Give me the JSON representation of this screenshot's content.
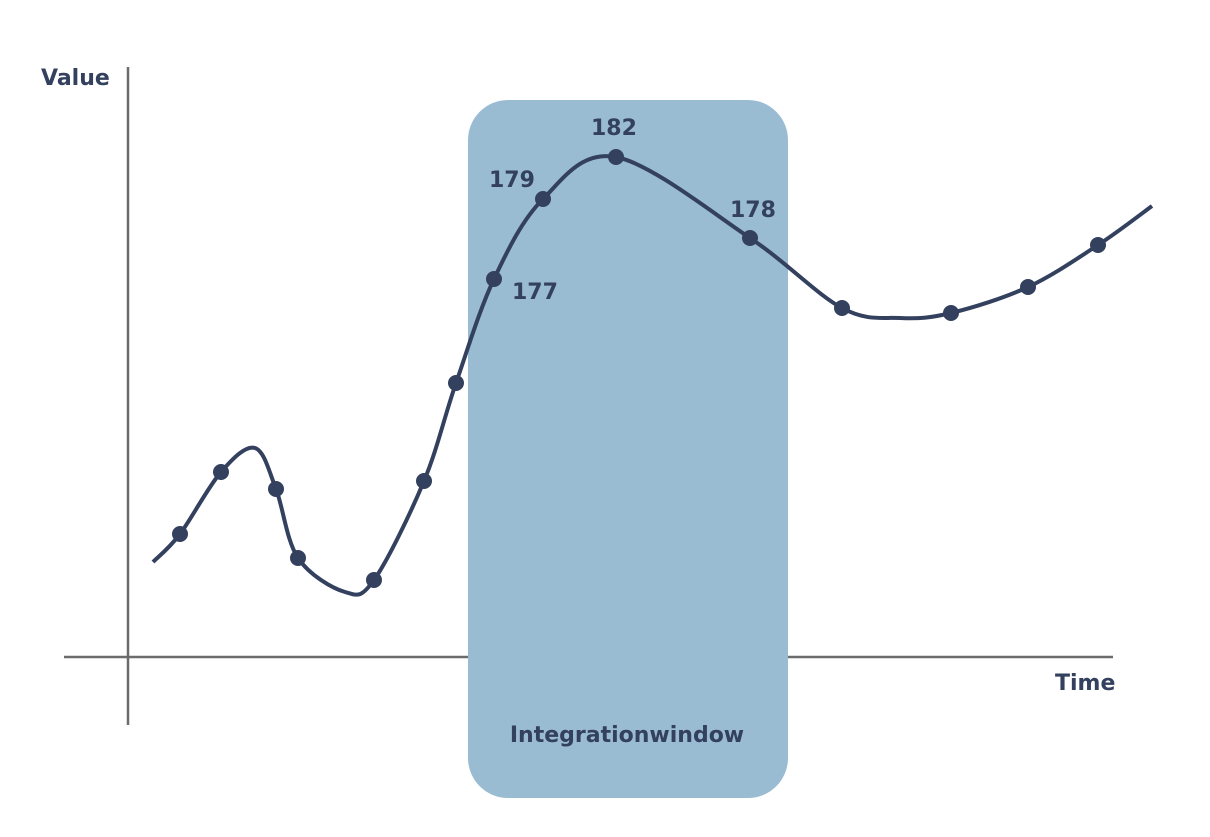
{
  "axes": {
    "y_label": "Value",
    "x_label": "Time"
  },
  "window": {
    "label": "Integrationwindow"
  },
  "point_labels": [
    179,
    177,
    182,
    178
  ]
}
